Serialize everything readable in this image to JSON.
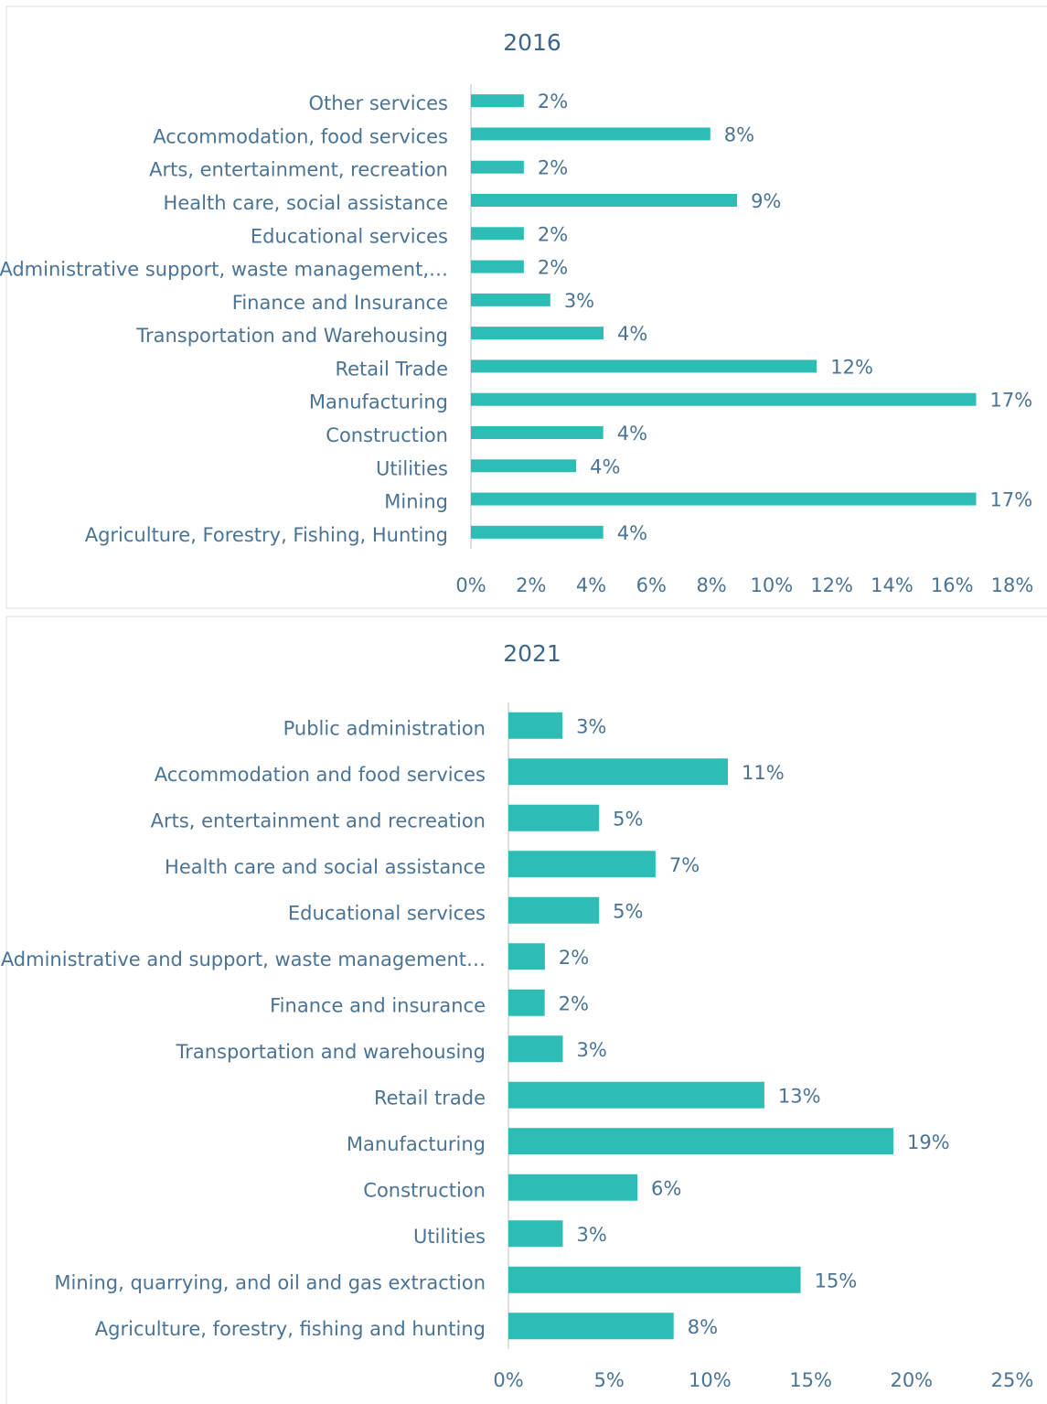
{
  "chart_data": [
    {
      "type": "bar",
      "orientation": "horizontal",
      "title": "2016",
      "color": "#2ebdb5",
      "categories": [
        "Other services",
        "Accommodation, food services",
        "Arts, entertainment, recreation",
        "Health care, social assistance",
        "Educational services",
        "Administrative support, waste management,…",
        "Finance and Insurance",
        "Transportation and Warehousing",
        "Retail Trade",
        "Manufacturing",
        "Construction",
        "Utilities",
        "Mining",
        "Agriculture, Forestry, Fishing,  Hunting"
      ],
      "values": [
        1.76,
        7.96,
        1.76,
        8.85,
        1.76,
        1.76,
        2.64,
        4.41,
        11.5,
        16.8,
        4.4,
        3.5,
        16.8,
        4.4
      ],
      "value_labels": [
        "2%",
        "8%",
        "2%",
        "9%",
        "2%",
        "2%",
        "3%",
        "4%",
        "12%",
        "17%",
        "4%",
        "4%",
        "17%",
        "4%"
      ],
      "xlim": [
        0,
        18
      ],
      "xticks": [
        {
          "value": 0,
          "label": "0%"
        },
        {
          "value": 2,
          "label": "2%"
        },
        {
          "value": 4,
          "label": "4%"
        },
        {
          "value": 6,
          "label": "6%"
        },
        {
          "value": 8,
          "label": "8%"
        },
        {
          "value": 10,
          "label": "10%"
        },
        {
          "value": 12,
          "label": "12%"
        },
        {
          "value": 14,
          "label": "14%"
        },
        {
          "value": 16,
          "label": "16%"
        },
        {
          "value": 18,
          "label": "18%"
        }
      ]
    },
    {
      "type": "bar",
      "orientation": "horizontal",
      "title": "2021",
      "color": "#2ebdb5",
      "categories": [
        "Public administration",
        "Accommodation and food services",
        "Arts, entertainment and recreation",
        "Health care and social assistance",
        "Educational services",
        "Administrative and support, waste management…",
        "Finance and insurance",
        "Transportation and warehousing",
        "Retail trade",
        "Manufacturing",
        "Construction",
        "Utilities",
        "Mining, quarrying, and oil and gas extraction",
        "Agriculture, forestry, fishing and hunting"
      ],
      "values": [
        2.68,
        10.89,
        4.5,
        7.3,
        4.5,
        1.81,
        1.8,
        2.7,
        12.7,
        19.1,
        6.4,
        2.7,
        14.5,
        8.2
      ],
      "value_labels": [
        "3%",
        "11%",
        "5%",
        "7%",
        "5%",
        "2%",
        "2%",
        "3%",
        "13%",
        "19%",
        "6%",
        "3%",
        "15%",
        "8%"
      ],
      "xlim": [
        0,
        25
      ],
      "xticks": [
        {
          "value": 0,
          "label": "0%"
        },
        {
          "value": 5,
          "label": "5%"
        },
        {
          "value": 10,
          "label": "10%"
        },
        {
          "value": 15,
          "label": "15%"
        },
        {
          "value": 20,
          "label": "20%"
        },
        {
          "value": 25,
          "label": "25%"
        }
      ]
    }
  ]
}
